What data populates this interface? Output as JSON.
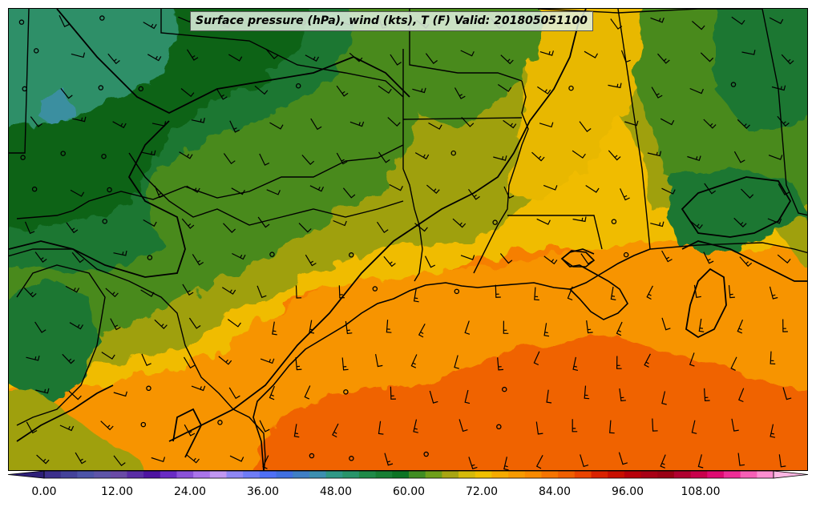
{
  "title": "Surface pressure (hPa), wind (kts), T (F) Valid: 201805051100",
  "colorbar": {
    "min": 0,
    "max": 120,
    "step": 3,
    "tick_labels": [
      "0.00",
      "12.00",
      "24.00",
      "36.00",
      "48.00",
      "60.00",
      "72.00",
      "84.00",
      "96.00",
      "108.00"
    ],
    "colors": [
      "#3c2f8c",
      "#44429a",
      "#4d54a8",
      "#5e55a8",
      "#6a4aa6",
      "#5a2da5",
      "#4e14a0",
      "#6a2bc4",
      "#8b52d8",
      "#aa74ea",
      "#c197f2",
      "#8f87f4",
      "#6f7cf6",
      "#4f70f6",
      "#4170e0",
      "#3f7fc5",
      "#3c8fb0",
      "#2f9886",
      "#28946a",
      "#1f8a48",
      "#177f34",
      "#0c7424",
      "#3f8d22",
      "#6e9f19",
      "#a8a512",
      "#d6ba0a",
      "#f0c000",
      "#f5ab00",
      "#f79a00",
      "#f88a00",
      "#f57400",
      "#f05f00",
      "#ea4400",
      "#d92200",
      "#c80f00",
      "#b8000a",
      "#a80015",
      "#9a0014",
      "#b00030",
      "#c8004c",
      "#de0a72",
      "#ee2c96",
      "#f65fb6",
      "#fc8ed0"
    ]
  },
  "map_fields": {
    "temperature_palette": {
      "cool": "#0a6318",
      "dark_green": "#1e7730",
      "mid_green": "#4a8a1e",
      "olive": "#9fa010",
      "yellow": "#f0bc00",
      "light_orange": "#f79400",
      "orange": "#f67f00",
      "deep_orange": "#f06400",
      "teal": "#2e8f68"
    },
    "boundary_color": "#000000"
  }
}
